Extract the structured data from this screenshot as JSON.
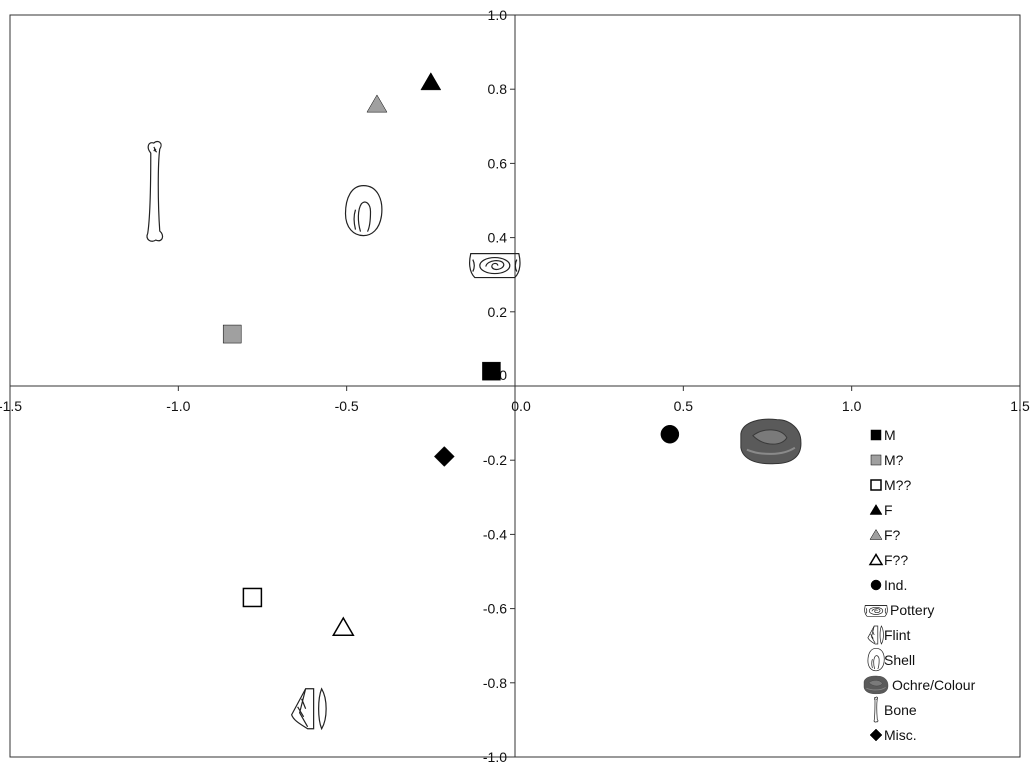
{
  "chart_data": {
    "type": "scatter",
    "title": "",
    "xlabel": "",
    "ylabel": "",
    "xlim": [
      -1.5,
      1.5
    ],
    "ylim": [
      -1.0,
      1.0
    ],
    "x_ticks": [
      "-1.5",
      "-1.0",
      "-0.5",
      "0.0",
      "0.5",
      "1.0",
      "1.5"
    ],
    "y_ticks": [
      "1.0",
      "0.8",
      "0.6",
      "0.4",
      "0.2",
      "0.0",
      "-0.2",
      "-0.4",
      "-0.6",
      "-0.8",
      "-1.0"
    ],
    "grid": false,
    "legend_position": "bottom-right",
    "series": [
      {
        "name": "M",
        "marker": "square",
        "fill": "#000000",
        "x": -0.07,
        "y": 0.04
      },
      {
        "name": "M?",
        "marker": "square",
        "fill": "#a0a0a0",
        "x": -0.84,
        "y": 0.14
      },
      {
        "name": "M??",
        "marker": "square-open",
        "fill": "#ffffff",
        "x": -0.78,
        "y": -0.57
      },
      {
        "name": "F",
        "marker": "triangle",
        "fill": "#000000",
        "x": -0.25,
        "y": 0.82
      },
      {
        "name": "F?",
        "marker": "triangle",
        "fill": "#a0a0a0",
        "x": -0.41,
        "y": 0.76
      },
      {
        "name": "F??",
        "marker": "triangle-open",
        "fill": "#ffffff",
        "x": -0.51,
        "y": -0.65
      },
      {
        "name": "Ind.",
        "marker": "circle",
        "fill": "#000000",
        "x": 0.46,
        "y": -0.13
      },
      {
        "name": "Misc.",
        "marker": "diamond",
        "fill": "#000000",
        "x": -0.21,
        "y": -0.19
      }
    ],
    "icons": [
      {
        "name": "Bone",
        "icon": "bone-icon",
        "x": -1.07,
        "y": 0.52
      },
      {
        "name": "Shell",
        "icon": "shell-icon",
        "x": -0.45,
        "y": 0.47
      },
      {
        "name": "Pottery",
        "icon": "pottery-icon",
        "x": -0.06,
        "y": 0.33
      },
      {
        "name": "Ochre/Colour",
        "icon": "ochre-icon",
        "x": 0.76,
        "y": -0.15
      },
      {
        "name": "Flint",
        "icon": "flint-icon",
        "x": -0.61,
        "y": -0.87
      }
    ],
    "legend": [
      {
        "label": "M",
        "marker": "square",
        "fill": "#000000"
      },
      {
        "label": "M?",
        "marker": "square",
        "fill": "#a0a0a0"
      },
      {
        "label": "M??",
        "marker": "square-open",
        "fill": "#ffffff"
      },
      {
        "label": "F",
        "marker": "triangle",
        "fill": "#000000"
      },
      {
        "label": "F?",
        "marker": "triangle",
        "fill": "#a0a0a0"
      },
      {
        "label": "F??",
        "marker": "triangle-open",
        "fill": "#ffffff"
      },
      {
        "label": "Ind.",
        "marker": "circle",
        "fill": "#000000"
      },
      {
        "label": "Pottery",
        "marker": "pottery-icon",
        "fill": "#ffffff"
      },
      {
        "label": "Flint",
        "marker": "flint-icon",
        "fill": "#ffffff"
      },
      {
        "label": "Shell",
        "marker": "shell-icon",
        "fill": "#ffffff"
      },
      {
        "label": "Ochre/Colour",
        "marker": "ochre-icon",
        "fill": "#555555"
      },
      {
        "label": "Bone",
        "marker": "bone-icon",
        "fill": "#ffffff"
      },
      {
        "label": "Misc.",
        "marker": "diamond",
        "fill": "#000000"
      }
    ]
  }
}
